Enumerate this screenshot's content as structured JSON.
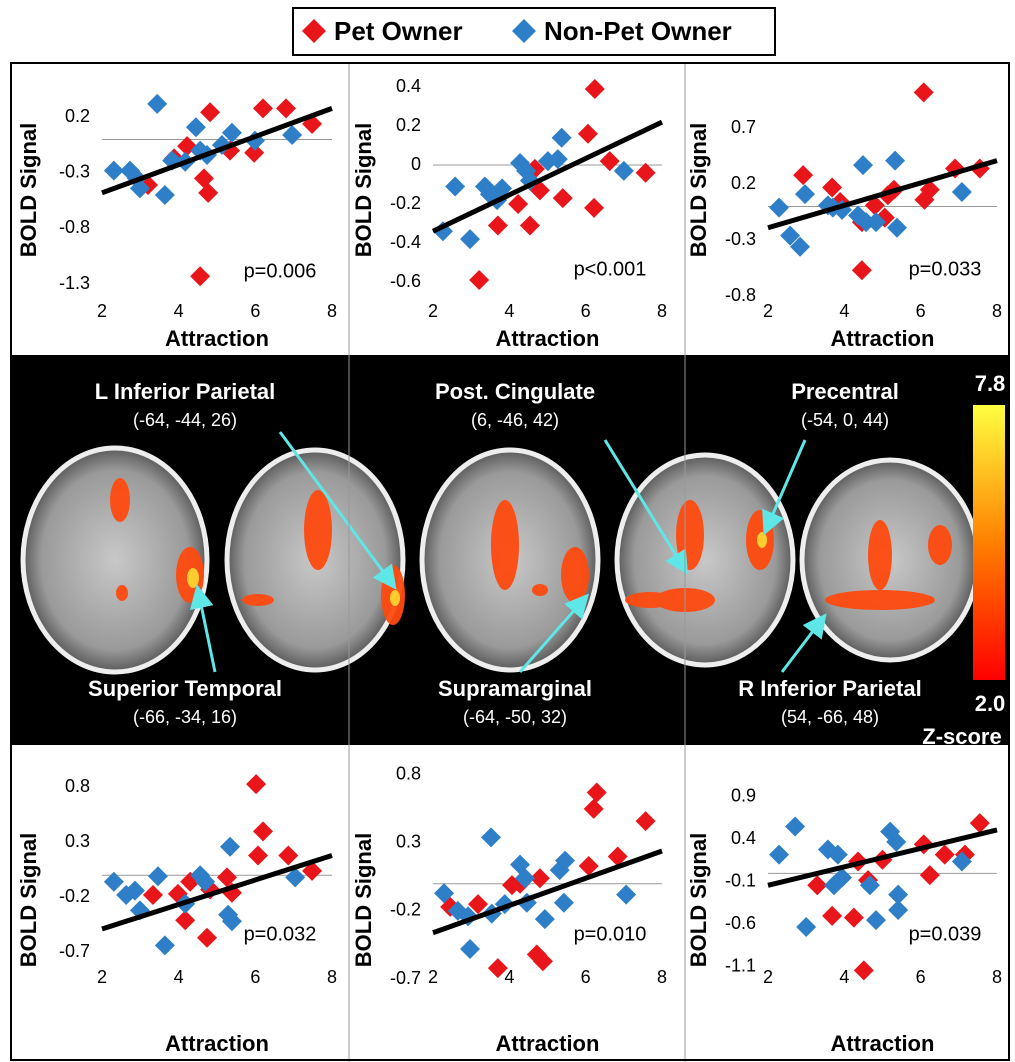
{
  "chart_data": [
    {
      "type": "scatter",
      "x_label": "Attraction",
      "y_label": "BOLD Signal",
      "annotation": "p=0.006",
      "xlim": [
        2,
        8
      ],
      "xticks": [
        2,
        4,
        6,
        8
      ],
      "ylim": [
        -1.3,
        0.4
      ],
      "yticks": [
        -1.3,
        -0.8,
        -0.3,
        0.2
      ],
      "zero_line": true,
      "series": [
        {
          "name": "Pet Owner",
          "color": "#e8151b",
          "x": [
            4.82,
            6.2,
            6.8,
            7.48,
            5.97,
            5.34,
            4.66,
            4.77,
            4.22,
            4.56,
            3.2,
            3.88
          ],
          "values": [
            0.245,
            0.28,
            0.28,
            0.14,
            -0.12,
            -0.1,
            -0.35,
            -0.48,
            -0.06,
            -1.23,
            -0.41,
            -0.17
          ]
        },
        {
          "name": "Non-Pet Owner",
          "color": "#2f7fc8",
          "x": [
            3.44,
            2.31,
            2.73,
            2.91,
            2.99,
            3.64,
            3.83,
            4.45,
            4.56,
            4.74,
            5.13,
            5.39,
            5.99,
            6.96,
            4.17
          ],
          "values": [
            0.32,
            -0.28,
            -0.28,
            -0.35,
            -0.44,
            -0.5,
            -0.19,
            0.11,
            -0.1,
            -0.14,
            -0.05,
            0.06,
            -0.01,
            0.04,
            -0.2
          ]
        }
      ],
      "trendline": {
        "x": [
          2,
          8
        ],
        "y": [
          -0.48,
          0.28
        ]
      }
    },
    {
      "type": "scatter",
      "x_label": "Attraction",
      "y_label": "BOLD Signal",
      "annotation": "p<0.001",
      "xlim": [
        2,
        8
      ],
      "xticks": [
        2,
        4,
        6,
        8
      ],
      "ylim": [
        -0.6,
        0.4
      ],
      "yticks": [
        -0.6,
        -0.4,
        -0.2,
        0,
        0.2,
        0.4
      ],
      "zero_line": true,
      "series": [
        {
          "name": "Pet Owner",
          "color": "#e8151b",
          "x": [
            6.24,
            6.06,
            6.22,
            6.63,
            7.57,
            3.21,
            3.7,
            4.54,
            4.23,
            4.8,
            5.4,
            4.67
          ],
          "values": [
            0.39,
            0.16,
            -0.22,
            0.02,
            -0.04,
            -0.59,
            -0.31,
            -0.31,
            -0.2,
            -0.13,
            -0.17,
            -0.02
          ]
        },
        {
          "name": "Non-Pet Owner",
          "color": "#2f7fc8",
          "x": [
            2.26,
            2.58,
            2.97,
            3.36,
            3.49,
            3.68,
            4.28,
            4.44,
            4.54,
            5.01,
            5.27,
            5.37,
            7.0,
            3.81
          ],
          "values": [
            -0.34,
            -0.11,
            -0.38,
            -0.11,
            -0.15,
            -0.18,
            0.01,
            -0.03,
            -0.08,
            0.02,
            0.03,
            0.14,
            -0.03,
            -0.12
          ]
        }
      ],
      "trendline": {
        "x": [
          2,
          8
        ],
        "y": [
          -0.34,
          0.22
        ]
      }
    },
    {
      "type": "scatter",
      "x_label": "Attraction",
      "y_label": "BOLD Signal",
      "annotation": "p=0.033",
      "xlim": [
        2,
        8
      ],
      "xticks": [
        2,
        4,
        6,
        8
      ],
      "ylim": [
        -0.8,
        1.05
      ],
      "yticks": [
        -0.8,
        -0.3,
        0.2,
        0.7
      ],
      "zero_line": true,
      "series": [
        {
          "name": "Pet Owner",
          "color": "#e8151b",
          "x": [
            6.08,
            6.9,
            7.55,
            6.24,
            3.89,
            2.92,
            3.68,
            4.8,
            4.46,
            5.3,
            5.06,
            5.14,
            4.46,
            6.1
          ],
          "values": [
            1.02,
            0.34,
            0.34,
            0.15,
            0.04,
            0.28,
            0.17,
            0.01,
            -0.14,
            0.15,
            -0.1,
            0.1,
            -0.57,
            0.06
          ]
        },
        {
          "name": "Non-Pet Owner",
          "color": "#2f7fc8",
          "x": [
            2.29,
            2.58,
            2.84,
            2.97,
            3.57,
            3.7,
            3.94,
            4.49,
            4.36,
            4.57,
            4.83,
            5.33,
            5.38,
            7.08
          ],
          "values": [
            -0.01,
            -0.26,
            -0.36,
            0.11,
            0.01,
            -0.01,
            -0.03,
            0.37,
            -0.08,
            -0.14,
            -0.14,
            0.41,
            -0.19,
            0.13
          ]
        }
      ],
      "trendline": {
        "x": [
          2,
          8
        ],
        "y": [
          -0.19,
          0.41
        ]
      }
    },
    {
      "type": "scatter",
      "x_label": "Attraction",
      "y_label": "BOLD Signal",
      "annotation": "p=0.032",
      "xlim": [
        2,
        8
      ],
      "xticks": [
        2,
        4,
        6,
        8
      ],
      "ylim": [
        -0.7,
        0.95
      ],
      "yticks": [
        -0.7,
        -0.2,
        0.3,
        0.8
      ],
      "zero_line": true,
      "series": [
        {
          "name": "Pet Owner",
          "color": "#e8151b",
          "x": [
            6.02,
            6.2,
            6.07,
            6.86,
            7.48,
            5.39,
            4.82,
            4.3,
            3.98,
            4.17,
            4.74,
            3.33,
            5.26
          ],
          "values": [
            0.83,
            0.4,
            0.18,
            0.18,
            0.04,
            -0.16,
            -0.13,
            -0.06,
            -0.17,
            -0.41,
            -0.57,
            -0.18,
            -0.02
          ]
        },
        {
          "name": "Non-Pet Owner",
          "color": "#2f7fc8",
          "x": [
            2.31,
            2.63,
            2.86,
            2.99,
            3.46,
            3.64,
            4.17,
            4.56,
            4.69,
            5.29,
            5.39,
            5.34,
            7.04
          ],
          "values": [
            -0.06,
            -0.18,
            -0.14,
            -0.32,
            -0.01,
            -0.64,
            -0.26,
            0.0,
            -0.06,
            -0.36,
            -0.42,
            0.26,
            -0.02
          ]
        }
      ],
      "trendline": {
        "x": [
          2,
          8
        ],
        "y": [
          -0.49,
          0.18
        ]
      }
    },
    {
      "type": "scatter",
      "x_label": "Attraction",
      "y_label": "BOLD Signal",
      "annotation": "p=0.010",
      "xlim": [
        2,
        8
      ],
      "xticks": [
        2,
        4,
        6,
        8
      ],
      "ylim": [
        -0.7,
        0.85
      ],
      "yticks": [
        -0.7,
        -0.2,
        0.3,
        0.8
      ],
      "zero_line": true,
      "series": [
        {
          "name": "Pet Owner",
          "color": "#e8151b",
          "x": [
            6.29,
            6.21,
            7.57,
            6.84,
            6.08,
            4.8,
            4.28,
            2.45,
            3.7,
            4.07,
            4.72,
            4.88,
            3.18
          ],
          "values": [
            0.67,
            0.55,
            0.46,
            0.2,
            0.13,
            0.04,
            0.0,
            -0.17,
            -0.62,
            -0.01,
            -0.52,
            -0.57,
            -0.15
          ]
        },
        {
          "name": "Non-Pet Owner",
          "color": "#2f7fc8",
          "x": [
            2.29,
            2.65,
            2.92,
            2.97,
            3.52,
            3.54,
            3.88,
            4.28,
            4.41,
            4.46,
            4.93,
            5.32,
            5.46,
            5.43,
            7.06
          ],
          "values": [
            -0.07,
            -0.2,
            -0.24,
            -0.48,
            0.34,
            -0.22,
            -0.15,
            0.14,
            0.04,
            -0.14,
            -0.26,
            0.1,
            0.17,
            -0.14,
            -0.08
          ]
        }
      ],
      "trendline": {
        "x": [
          2,
          8
        ],
        "y": [
          -0.36,
          0.24
        ]
      }
    },
    {
      "type": "scatter",
      "x_label": "Attraction",
      "y_label": "BOLD Signal",
      "annotation": "p=0.039",
      "xlim": [
        2,
        8
      ],
      "xticks": [
        2,
        4,
        6,
        8
      ],
      "ylim": [
        -1.2,
        1.05
      ],
      "yticks": [
        -1.1,
        -0.6,
        -0.1,
        0.4,
        0.9
      ],
      "zero_line": true,
      "series": [
        {
          "name": "Pet Owner",
          "color": "#e8151b",
          "x": [
            7.55,
            6.08,
            6.63,
            7.16,
            6.24,
            5.0,
            4.36,
            4.62,
            3.29,
            3.68,
            4.25,
            4.51
          ],
          "values": [
            0.59,
            0.34,
            0.22,
            0.22,
            -0.02,
            0.16,
            0.14,
            -0.08,
            -0.14,
            -0.5,
            -0.52,
            -1.14
          ]
        },
        {
          "name": "Non-Pet Owner",
          "color": "#2f7fc8",
          "x": [
            2.29,
            2.71,
            3.0,
            3.57,
            3.83,
            3.73,
            3.94,
            4.67,
            4.83,
            5.2,
            5.36,
            5.41,
            5.41,
            7.08
          ],
          "values": [
            0.22,
            0.55,
            -0.63,
            0.28,
            0.22,
            -0.14,
            -0.05,
            -0.14,
            -0.55,
            0.49,
            0.37,
            -0.25,
            -0.43,
            0.14
          ]
        }
      ],
      "trendline": {
        "x": [
          2,
          8
        ],
        "y": [
          -0.14,
          0.51
        ]
      }
    }
  ],
  "brain_panel": {
    "regions": [
      {
        "name": "L Inferior Parietal",
        "coords": "(-64, -44, 26)"
      },
      {
        "name": "Post. Cingulate",
        "coords": "(6, -46, 42)"
      },
      {
        "name": "Precentral",
        "coords": "(-54, 0, 44)"
      },
      {
        "name": "Superior Temporal",
        "coords": "(-66, -34, 16)"
      },
      {
        "name": "Supramarginal",
        "coords": "(-64, -50, 32)"
      },
      {
        "name": "R Inferior Parietal",
        "coords": "(54, -66, 48)"
      }
    ],
    "colorbar": {
      "ticks": [
        {
          "value": 2,
          "label": "2.0"
        },
        7.8
      ],
      "label": "Z-score"
    }
  }
}
